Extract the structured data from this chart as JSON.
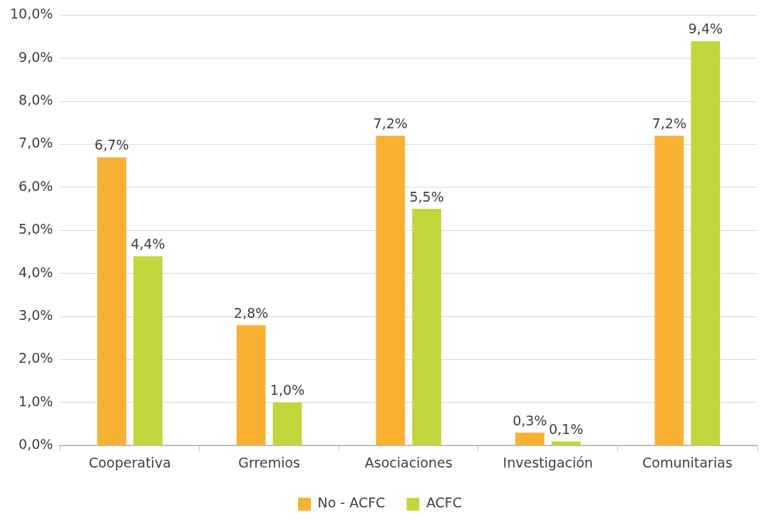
{
  "chart_data": {
    "type": "bar",
    "categories": [
      "Cooperativa",
      "Grremios",
      "Asociaciones",
      "Investigación",
      "Comunitarias"
    ],
    "series": [
      {
        "name": "No - ACFC",
        "color": "#f8b133",
        "values": [
          6.7,
          2.8,
          7.2,
          0.3,
          7.2
        ],
        "value_labels": [
          "6,7%",
          "2,8%",
          "7,2%",
          "0,3%",
          "7,2%"
        ]
      },
      {
        "name": "ACFC",
        "color": "#c2d63b",
        "values": [
          4.4,
          1.0,
          5.5,
          0.1,
          9.4
        ],
        "value_labels": [
          "4,4%",
          "1,0%",
          "5,5%",
          "0,1%",
          "9,4%"
        ]
      }
    ],
    "ylim": [
      0,
      10
    ],
    "yticks": [
      {
        "value": 0,
        "label": "0,0%"
      },
      {
        "value": 1,
        "label": "1,0%"
      },
      {
        "value": 2,
        "label": "2,0%"
      },
      {
        "value": 3,
        "label": "3,0%"
      },
      {
        "value": 4,
        "label": "4,0%"
      },
      {
        "value": 5,
        "label": "5,0%"
      },
      {
        "value": 6,
        "label": "6,0%"
      },
      {
        "value": 7,
        "label": "7,0%"
      },
      {
        "value": 8,
        "label": "8,0%"
      },
      {
        "value": 9,
        "label": "9,0%"
      },
      {
        "value": 10,
        "label": "10,0%"
      }
    ],
    "grid": "y",
    "legend": "bottom"
  }
}
